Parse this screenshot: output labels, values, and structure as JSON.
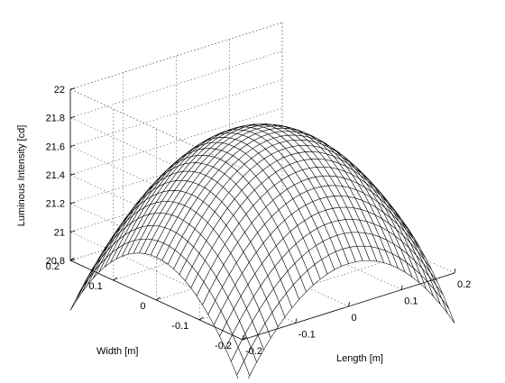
{
  "chart_data": {
    "type": "surface",
    "style": "mesh",
    "mesh_color": "#000000",
    "face_color": "#ffffff",
    "background": "#ffffff",
    "grid": true,
    "xlabel": "Length [m]",
    "ylabel": "Width [m]",
    "zlabel": "Luminous Intensity [cd]",
    "xlim": [
      -0.2,
      0.2
    ],
    "ylim": [
      -0.2,
      0.2
    ],
    "zlim": [
      20.8,
      22
    ],
    "x_ticks": [
      -0.2,
      -0.1,
      0,
      0.1,
      0.2
    ],
    "y_ticks": [
      -0.2,
      -0.1,
      0,
      0.1,
      0.2
    ],
    "z_ticks": [
      20.8,
      21,
      21.2,
      21.4,
      21.6,
      21.8,
      22
    ],
    "x_tick_labels": [
      "-0.2",
      "-0.1",
      "0",
      "0.1",
      "0.2"
    ],
    "y_tick_labels": [
      "-0.2",
      "-0.1",
      "0",
      "0.1",
      "0.2"
    ],
    "z_tick_labels": [
      "20.8",
      "21",
      "21.2",
      "21.4",
      "21.6",
      "21.8",
      "22"
    ],
    "mesh_lines_per_axis": 30,
    "surface": {
      "peak_value": 21.75,
      "edge_midpoint_value": 21.1,
      "corner_value": 20.85,
      "model": "z = peak - a*x^2 - a*y^2 (approximately paraboloid dome, max at x=0, y=0)"
    }
  }
}
